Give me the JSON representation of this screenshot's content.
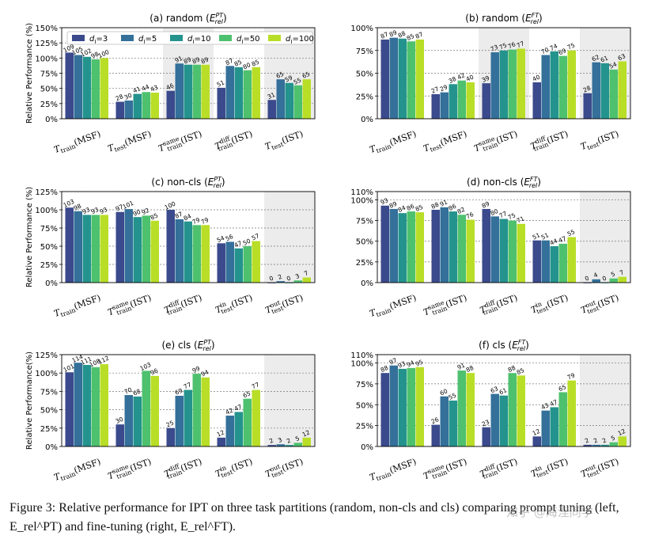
{
  "figure": {
    "caption": "Figure 3: Relative performance for IPT on three task partitions (random, non-cls and cls) comparing prompt tuning (left, E_rel^PT) and fine-tuning (right, E_rel^FT).",
    "watermark": "知乎 @海涅同学"
  },
  "legend": {
    "label_prefix": "d_I",
    "entries": [
      "d_I=3",
      "d_I=5",
      "d_I=10",
      "d_I=50",
      "d_I=100"
    ],
    "colors": [
      "#3b4a8c",
      "#34709a",
      "#24938d",
      "#4ec16f",
      "#b9de27"
    ]
  },
  "chart_data": [
    {
      "type": "bar",
      "title": "(a) random (E_rel^PT)",
      "ylabel": "Relative Performance (%)",
      "ylim": [
        0,
        150
      ],
      "yticks": [
        "0%",
        "25%",
        "50%",
        "75%",
        "100%",
        "125%",
        "150%"
      ],
      "ytick_values": [
        0,
        25,
        50,
        75,
        100,
        125,
        150
      ],
      "categories": [
        "T_train(MSF)",
        "T_test(MSF)",
        "T_train^same(IST)",
        "T_train^diff(IST)",
        "T_test(IST)"
      ],
      "shaded": [
        2,
        4
      ],
      "series": [
        {
          "name": "d_I=3",
          "values": [
            109,
            28,
            46,
            51,
            31
          ]
        },
        {
          "name": "d_I=5",
          "values": [
            105,
            30,
            91,
            87,
            65
          ]
        },
        {
          "name": "d_I=10",
          "values": [
            102,
            41,
            89,
            85,
            59
          ]
        },
        {
          "name": "d_I=50",
          "values": [
            98,
            44,
            89,
            80,
            55
          ]
        },
        {
          "name": "d_I=100",
          "values": [
            100,
            43,
            89,
            85,
            65
          ]
        }
      ]
    },
    {
      "type": "bar",
      "title": "(b) random (E_rel^FT)",
      "ylabel": "",
      "ylim": [
        0,
        100
      ],
      "yticks": [
        "0%",
        "25%",
        "50%",
        "75%",
        "100%"
      ],
      "ytick_values": [
        0,
        25,
        50,
        75,
        100
      ],
      "categories": [
        "T_train(MSF)",
        "T_test(MSF)",
        "T_train^same(IST)",
        "T_train^diff(IST)",
        "T_test(IST)"
      ],
      "shaded": [
        2,
        4
      ],
      "series": [
        {
          "name": "d_I=3",
          "values": [
            87,
            27,
            39,
            40,
            28
          ]
        },
        {
          "name": "d_I=5",
          "values": [
            89,
            29,
            73,
            70,
            62
          ]
        },
        {
          "name": "d_I=10",
          "values": [
            88,
            38,
            75,
            74,
            61
          ]
        },
        {
          "name": "d_I=50",
          "values": [
            85,
            42,
            76,
            69,
            54
          ]
        },
        {
          "name": "d_I=100",
          "values": [
            87,
            40,
            77,
            75,
            63
          ]
        }
      ]
    },
    {
      "type": "bar",
      "title": "(c) non-cls (E_rel^PT)",
      "ylabel": "Relative Performance (%)",
      "ylim": [
        0,
        125
      ],
      "yticks": [
        "0%",
        "25%",
        "50%",
        "75%",
        "100%",
        "125%"
      ],
      "ytick_values": [
        0,
        25,
        50,
        75,
        100,
        125
      ],
      "categories": [
        "T_train(MSF)",
        "T_train^same(IST)",
        "T_train^diff(IST)",
        "T_test^in(IST)",
        "T_test^out(IST)"
      ],
      "shaded": [
        4
      ],
      "series": [
        {
          "name": "d_I=3",
          "values": [
            103,
            97,
            100,
            54,
            0
          ]
        },
        {
          "name": "d_I=5",
          "values": [
            98,
            101,
            87,
            56,
            2
          ]
        },
        {
          "name": "d_I=10",
          "values": [
            93,
            90,
            84,
            47,
            0
          ]
        },
        {
          "name": "d_I=50",
          "values": [
            93,
            92,
            79,
            50,
            3
          ]
        },
        {
          "name": "d_I=100",
          "values": [
            93,
            85,
            79,
            57,
            7
          ]
        }
      ]
    },
    {
      "type": "bar",
      "title": "(d) non-cls (E_rel^FT)",
      "ylabel": "",
      "ylim": [
        0,
        110
      ],
      "yticks": [
        "0%",
        "25%",
        "50%",
        "75%",
        "100%",
        "110%"
      ],
      "ytick_values": [
        0,
        25,
        50,
        75,
        100,
        110
      ],
      "categories": [
        "T_train(MSF)",
        "T_train^same(IST)",
        "T_train^diff(IST)",
        "T_test^in(IST)",
        "T_test^out(IST)"
      ],
      "shaded": [
        4
      ],
      "series": [
        {
          "name": "d_I=3",
          "values": [
            93,
            88,
            89,
            51,
            0
          ]
        },
        {
          "name": "d_I=5",
          "values": [
            89,
            91,
            80,
            51,
            4
          ]
        },
        {
          "name": "d_I=10",
          "values": [
            84,
            86,
            77,
            44,
            0
          ]
        },
        {
          "name": "d_I=50",
          "values": [
            86,
            82,
            75,
            47,
            5
          ]
        },
        {
          "name": "d_I=100",
          "values": [
            85,
            76,
            71,
            55,
            7
          ]
        }
      ]
    },
    {
      "type": "bar",
      "title": "(e) cls (E_rel^PT)",
      "ylabel": "Relative Performance(%)",
      "ylim": [
        0,
        125
      ],
      "yticks": [
        "0%",
        "25%",
        "50%",
        "75%",
        "100%",
        "125%"
      ],
      "ytick_values": [
        0,
        25,
        50,
        75,
        100,
        125
      ],
      "categories": [
        "T_train(MSF)",
        "T_train^same(IST)",
        "T_train^diff(IST)",
        "T_test^in(IST)",
        "T_test^out(IST)"
      ],
      "shaded": [
        4
      ],
      "series": [
        {
          "name": "d_I=3",
          "values": [
            101,
            30,
            25,
            12,
            2
          ]
        },
        {
          "name": "d_I=5",
          "values": [
            114,
            70,
            69,
            42,
            3
          ]
        },
        {
          "name": "d_I=10",
          "values": [
            111,
            68,
            77,
            47,
            2
          ]
        },
        {
          "name": "d_I=50",
          "values": [
            108,
            103,
            99,
            65,
            5
          ]
        },
        {
          "name": "d_I=100",
          "values": [
            112,
            96,
            94,
            77,
            12
          ]
        }
      ]
    },
    {
      "type": "bar",
      "title": "(f) cls (E_rel^FT)",
      "ylabel": "",
      "ylim": [
        0,
        110
      ],
      "yticks": [
        "0%",
        "25%",
        "50%",
        "75%",
        "100%",
        "110%"
      ],
      "ytick_values": [
        0,
        25,
        50,
        75,
        100,
        110
      ],
      "categories": [
        "T_train(MSF)",
        "T_train^same(IST)",
        "T_train^diff(IST)",
        "T_test^in(IST)",
        "T_test^out(IST)"
      ],
      "shaded": [
        4
      ],
      "series": [
        {
          "name": "d_I=3",
          "values": [
            88,
            26,
            23,
            12,
            2
          ]
        },
        {
          "name": "d_I=5",
          "values": [
            97,
            60,
            63,
            43,
            2
          ]
        },
        {
          "name": "d_I=10",
          "values": [
            93,
            55,
            61,
            47,
            2
          ]
        },
        {
          "name": "d_I=50",
          "values": [
            94,
            91,
            88,
            65,
            5
          ]
        },
        {
          "name": "d_I=100",
          "values": [
            95,
            88,
            85,
            79,
            12
          ]
        }
      ]
    }
  ]
}
